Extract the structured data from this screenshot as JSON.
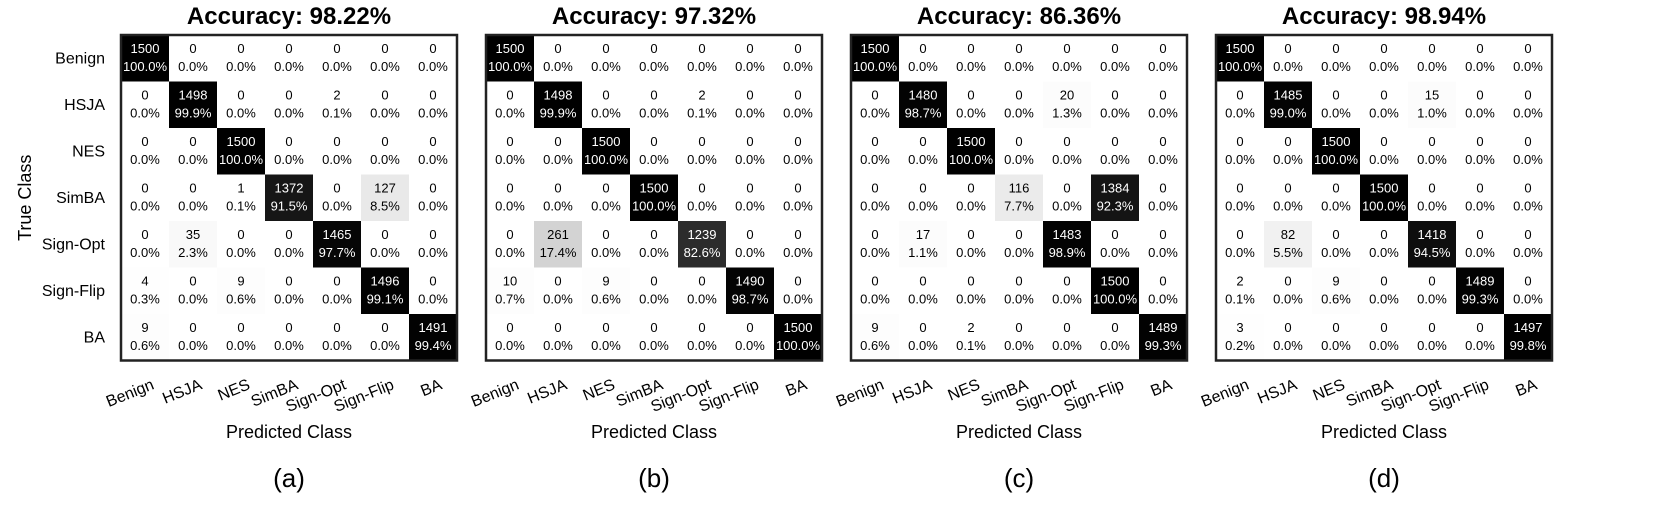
{
  "chart_data": [
    {
      "type": "heatmap",
      "title": "Accuracy: 98.22%",
      "xlabel": "Predicted Class",
      "ylabel": "True Class",
      "panel_label": "(a)",
      "classes": [
        "Benign",
        "HSJA",
        "NES",
        "SimBA",
        "Sign-Opt",
        "Sign-Flip",
        "BA"
      ],
      "counts": [
        [
          1500,
          0,
          0,
          0,
          0,
          0,
          0
        ],
        [
          0,
          1498,
          0,
          0,
          2,
          0,
          0
        ],
        [
          0,
          0,
          1500,
          0,
          0,
          0,
          0
        ],
        [
          0,
          0,
          1,
          1372,
          0,
          127,
          0
        ],
        [
          0,
          35,
          0,
          0,
          1465,
          0,
          0
        ],
        [
          4,
          0,
          9,
          0,
          0,
          1496,
          0
        ],
        [
          9,
          0,
          0,
          0,
          0,
          0,
          1491
        ]
      ],
      "percents": [
        [
          "100.0%",
          "0.0%",
          "0.0%",
          "0.0%",
          "0.0%",
          "0.0%",
          "0.0%"
        ],
        [
          "0.0%",
          "99.9%",
          "0.0%",
          "0.0%",
          "0.1%",
          "0.0%",
          "0.0%"
        ],
        [
          "0.0%",
          "0.0%",
          "100.0%",
          "0.0%",
          "0.0%",
          "0.0%",
          "0.0%"
        ],
        [
          "0.0%",
          "0.0%",
          "0.1%",
          "91.5%",
          "0.0%",
          "8.5%",
          "0.0%"
        ],
        [
          "0.0%",
          "2.3%",
          "0.0%",
          "0.0%",
          "97.7%",
          "0.0%",
          "0.0%"
        ],
        [
          "0.3%",
          "0.0%",
          "0.6%",
          "0.0%",
          "0.0%",
          "99.1%",
          "0.0%"
        ],
        [
          "0.6%",
          "0.0%",
          "0.0%",
          "0.0%",
          "0.0%",
          "0.0%",
          "99.4%"
        ]
      ]
    },
    {
      "type": "heatmap",
      "title": "Accuracy: 97.32%",
      "xlabel": "Predicted Class",
      "ylabel": "",
      "panel_label": "(b)",
      "classes": [
        "Benign",
        "HSJA",
        "NES",
        "SimBA",
        "Sign-Opt",
        "Sign-Flip",
        "BA"
      ],
      "counts": [
        [
          1500,
          0,
          0,
          0,
          0,
          0,
          0
        ],
        [
          0,
          1498,
          0,
          0,
          2,
          0,
          0
        ],
        [
          0,
          0,
          1500,
          0,
          0,
          0,
          0
        ],
        [
          0,
          0,
          0,
          1500,
          0,
          0,
          0
        ],
        [
          0,
          261,
          0,
          0,
          1239,
          0,
          0
        ],
        [
          10,
          0,
          9,
          0,
          0,
          1490,
          0
        ],
        [
          0,
          0,
          0,
          0,
          0,
          0,
          1500
        ]
      ],
      "percents": [
        [
          "100.0%",
          "0.0%",
          "0.0%",
          "0.0%",
          "0.0%",
          "0.0%",
          "0.0%"
        ],
        [
          "0.0%",
          "99.9%",
          "0.0%",
          "0.0%",
          "0.1%",
          "0.0%",
          "0.0%"
        ],
        [
          "0.0%",
          "0.0%",
          "100.0%",
          "0.0%",
          "0.0%",
          "0.0%",
          "0.0%"
        ],
        [
          "0.0%",
          "0.0%",
          "0.0%",
          "100.0%",
          "0.0%",
          "0.0%",
          "0.0%"
        ],
        [
          "0.0%",
          "17.4%",
          "0.0%",
          "0.0%",
          "82.6%",
          "0.0%",
          "0.0%"
        ],
        [
          "0.7%",
          "0.0%",
          "0.6%",
          "0.0%",
          "0.0%",
          "98.7%",
          "0.0%"
        ],
        [
          "0.0%",
          "0.0%",
          "0.0%",
          "0.0%",
          "0.0%",
          "0.0%",
          "100.0%"
        ]
      ]
    },
    {
      "type": "heatmap",
      "title": "Accuracy: 86.36%",
      "xlabel": "Predicted Class",
      "ylabel": "",
      "panel_label": "(c)",
      "classes": [
        "Benign",
        "HSJA",
        "NES",
        "SimBA",
        "Sign-Opt",
        "Sign-Flip",
        "BA"
      ],
      "counts": [
        [
          1500,
          0,
          0,
          0,
          0,
          0,
          0
        ],
        [
          0,
          1480,
          0,
          0,
          20,
          0,
          0
        ],
        [
          0,
          0,
          1500,
          0,
          0,
          0,
          0
        ],
        [
          0,
          0,
          0,
          116,
          0,
          1384,
          0
        ],
        [
          0,
          17,
          0,
          0,
          1483,
          0,
          0
        ],
        [
          0,
          0,
          0,
          0,
          0,
          1500,
          0
        ],
        [
          9,
          0,
          2,
          0,
          0,
          0,
          1489
        ]
      ],
      "percents": [
        [
          "100.0%",
          "0.0%",
          "0.0%",
          "0.0%",
          "0.0%",
          "0.0%",
          "0.0%"
        ],
        [
          "0.0%",
          "98.7%",
          "0.0%",
          "0.0%",
          "1.3%",
          "0.0%",
          "0.0%"
        ],
        [
          "0.0%",
          "0.0%",
          "100.0%",
          "0.0%",
          "0.0%",
          "0.0%",
          "0.0%"
        ],
        [
          "0.0%",
          "0.0%",
          "0.0%",
          "7.7%",
          "0.0%",
          "92.3%",
          "0.0%"
        ],
        [
          "0.0%",
          "1.1%",
          "0.0%",
          "0.0%",
          "98.9%",
          "0.0%",
          "0.0%"
        ],
        [
          "0.0%",
          "0.0%",
          "0.0%",
          "0.0%",
          "0.0%",
          "100.0%",
          "0.0%"
        ],
        [
          "0.6%",
          "0.0%",
          "0.1%",
          "0.0%",
          "0.0%",
          "0.0%",
          "99.3%"
        ]
      ]
    },
    {
      "type": "heatmap",
      "title": "Accuracy: 98.94%",
      "xlabel": "Predicted Class",
      "ylabel": "",
      "panel_label": "(d)",
      "classes": [
        "Benign",
        "HSJA",
        "NES",
        "SimBA",
        "Sign-Opt",
        "Sign-Flip",
        "BA"
      ],
      "counts": [
        [
          1500,
          0,
          0,
          0,
          0,
          0,
          0
        ],
        [
          0,
          1485,
          0,
          0,
          15,
          0,
          0
        ],
        [
          0,
          0,
          1500,
          0,
          0,
          0,
          0
        ],
        [
          0,
          0,
          0,
          1500,
          0,
          0,
          0
        ],
        [
          0,
          82,
          0,
          0,
          1418,
          0,
          0
        ],
        [
          2,
          0,
          9,
          0,
          0,
          1489,
          0
        ],
        [
          3,
          0,
          0,
          0,
          0,
          0,
          1497
        ]
      ],
      "percents": [
        [
          "100.0%",
          "0.0%",
          "0.0%",
          "0.0%",
          "0.0%",
          "0.0%",
          "0.0%"
        ],
        [
          "0.0%",
          "99.0%",
          "0.0%",
          "0.0%",
          "1.0%",
          "0.0%",
          "0.0%"
        ],
        [
          "0.0%",
          "0.0%",
          "100.0%",
          "0.0%",
          "0.0%",
          "0.0%",
          "0.0%"
        ],
        [
          "0.0%",
          "0.0%",
          "0.0%",
          "100.0%",
          "0.0%",
          "0.0%",
          "0.0%"
        ],
        [
          "0.0%",
          "5.5%",
          "0.0%",
          "0.0%",
          "94.5%",
          "0.0%",
          "0.0%"
        ],
        [
          "0.1%",
          "0.0%",
          "0.6%",
          "0.0%",
          "0.0%",
          "99.3%",
          "0.0%"
        ],
        [
          "0.2%",
          "0.0%",
          "0.0%",
          "0.0%",
          "0.0%",
          "0.0%",
          "99.8%"
        ]
      ]
    }
  ]
}
